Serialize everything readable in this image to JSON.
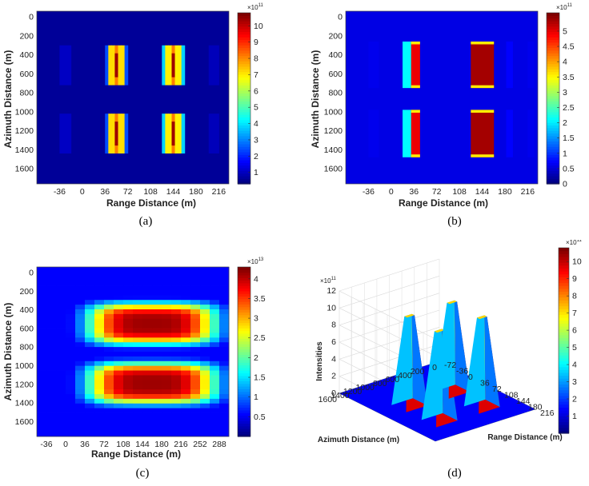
{
  "chart_data": [
    {
      "id": "a",
      "type": "heatmap",
      "panel_label": "(a)",
      "xlabel": "Range Distance (m)",
      "ylabel": "Azimuth Distance (m)",
      "xlim": [
        -72,
        232
      ],
      "ylim": [
        -60,
        1760
      ],
      "xticks": [
        -36,
        0,
        36,
        72,
        108,
        144,
        180,
        216
      ],
      "yticks": [
        0,
        200,
        400,
        600,
        800,
        1000,
        1200,
        1400,
        1600
      ],
      "colorbar": {
        "exponent": "×10^11",
        "min": 0.3,
        "max": 10.8,
        "ticks": [
          1,
          2,
          3,
          4,
          5,
          6,
          7,
          8,
          9,
          10
        ]
      },
      "peak": 10.5,
      "blocks_x": [
        {
          "x0": 36,
          "x1": 72,
          "profile": [
            2.4,
            7.2,
            7.2,
            10.5,
            7.2,
            7.2,
            2.4
          ]
        },
        {
          "x0": 126,
          "x1": 162,
          "profile": [
            3.8,
            7.0,
            7.0,
            10.5,
            7.0,
            7.0,
            3.8
          ]
        },
        {
          "x0": -36,
          "x1": -18,
          "profile": [
            1.0
          ]
        },
        {
          "x0": 200,
          "x1": 216,
          "profile": [
            0.9
          ]
        }
      ],
      "blocks_y": [
        {
          "y0": 300,
          "y1": 720
        },
        {
          "y0": 1020,
          "y1": 1440
        }
      ]
    },
    {
      "id": "b",
      "type": "heatmap",
      "panel_label": "(b)",
      "xlabel": "Range Distance (m)",
      "ylabel": "Azimuth Distance (m)",
      "xlim": [
        -72,
        232
      ],
      "ylim": [
        -60,
        1760
      ],
      "xticks": [
        -36,
        0,
        36,
        72,
        108,
        144,
        180,
        216
      ],
      "yticks": [
        0,
        200,
        400,
        600,
        800,
        1000,
        1200,
        1400,
        1600
      ],
      "colorbar": {
        "exponent": "×10^11",
        "min": 0,
        "max": 5.6,
        "ticks": [
          0,
          0.5,
          1,
          1.5,
          2,
          2.5,
          3,
          3.5,
          4,
          4.5,
          5
        ]
      },
      "peak": 5.4,
      "blocks_x": [
        {
          "x0": 18,
          "x1": 45,
          "profile": [
            2.1,
            5.0
          ]
        },
        {
          "x0": 126,
          "x1": 162,
          "profile": [
            5.4
          ]
        },
        {
          "x0": -36,
          "x1": -20,
          "profile": [
            0.6
          ]
        },
        {
          "x0": 182,
          "x1": 192,
          "profile": [
            0.7
          ]
        },
        {
          "x0": 216,
          "x1": 226,
          "profile": [
            0.6
          ]
        }
      ],
      "blocks_y": [
        {
          "y0": 260,
          "y1": 750
        },
        {
          "y0": 980,
          "y1": 1480
        }
      ]
    },
    {
      "id": "c",
      "type": "heatmap",
      "panel_label": "(c)",
      "xlabel": "Range Distance (m)",
      "ylabel": "Azimuth Distance (m)",
      "xlim": [
        -54,
        306
      ],
      "ylim": [
        -60,
        1760
      ],
      "xticks": [
        -36,
        0,
        36,
        72,
        108,
        144,
        180,
        216,
        252,
        288
      ],
      "yticks": [
        0,
        200,
        400,
        600,
        800,
        1000,
        1200,
        1400,
        1600
      ],
      "colorbar": {
        "exponent": "×10^13",
        "min": 0,
        "max": 4.3,
        "ticks": [
          0.5,
          1,
          1.5,
          2,
          2.5,
          3,
          3.5,
          4
        ]
      },
      "peak": 4.2,
      "blob_centers_y": [
        550,
        1190
      ],
      "blob_center_x": 162
    },
    {
      "id": "d",
      "type": "surface",
      "panel_label": "(d)",
      "zlabel": "Intensities",
      "xlabel": "Range Distance (m)",
      "ylabel": "Azimuth Distance (m)",
      "z_exponent": "×10^11",
      "zticks": [
        0,
        2,
        4,
        6,
        8,
        10,
        12
      ],
      "range_ticks": [
        -72,
        -36,
        0,
        36,
        72,
        108,
        144,
        180,
        216
      ],
      "azimuth_ticks": [
        0,
        200,
        400,
        600,
        800,
        1000,
        1200,
        1400,
        1600
      ],
      "colorbar": {
        "exponent": "×10^11",
        "min": 0,
        "max": 10.8,
        "ticks": [
          1,
          2,
          3,
          4,
          5,
          6,
          7,
          8,
          9,
          10
        ]
      },
      "peaks": [
        {
          "range": 54,
          "azimuth": 1150,
          "height": 10.5
        },
        {
          "range": 144,
          "azimuth": 1150,
          "height": 10.5
        },
        {
          "range": 54,
          "azimuth": 470,
          "height": 10.5
        },
        {
          "range": 144,
          "azimuth": 470,
          "height": 10.5
        }
      ]
    }
  ]
}
